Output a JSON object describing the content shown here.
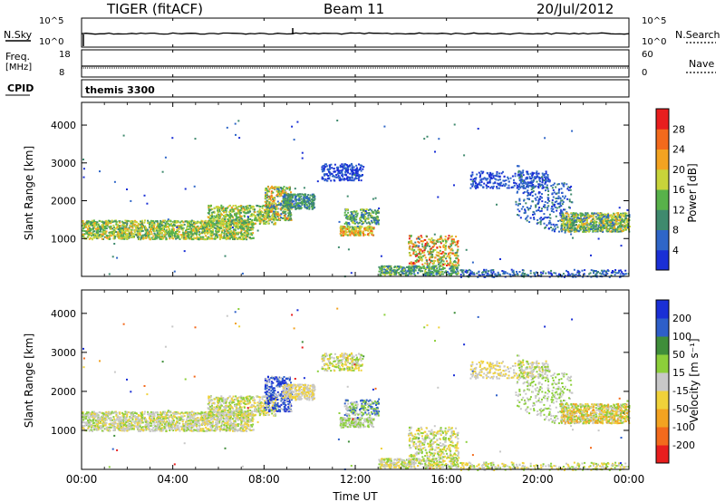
{
  "header": {
    "site": "TIGER (fitACF)",
    "beam": "Beam 11",
    "date": "20/Jul/2012"
  },
  "summary_panels": {
    "nsky": {
      "left_label": "N.Sky",
      "right_label": "N.Search",
      "left_ticks": [
        "10^5",
        "10^0"
      ],
      "right_ticks": [
        "10^5",
        "10^0"
      ]
    },
    "freq": {
      "left_label": "Freq.",
      "left_unit": "[MHz]",
      "right_label": "Nave",
      "left_ticks": [
        "18",
        "8"
      ],
      "right_ticks": [
        "60",
        "0"
      ]
    },
    "cpid": {
      "label": "CPID",
      "value": "themis 3300"
    }
  },
  "chart_data": [
    {
      "type": "heatmap",
      "name": "power",
      "ylabel": "Slant Range [km]",
      "y_ticks": [
        "1000",
        "2000",
        "3000",
        "4000"
      ],
      "ylim": [
        0,
        4600
      ],
      "xlim_hours": [
        0,
        24
      ],
      "colorbar": {
        "label": "Power [dB]",
        "ticks": [
          "4",
          "8",
          "12",
          "16",
          "20",
          "24",
          "28"
        ],
        "range": [
          0,
          30
        ],
        "colors": [
          "#1a2fd6",
          "#2f66c8",
          "#3f8a6e",
          "#58b24a",
          "#c8d43a",
          "#f3a321",
          "#f36a1c",
          "#e81e1e"
        ]
      }
    },
    {
      "type": "heatmap",
      "name": "velocity",
      "ylabel": "Slant Range [km]",
      "y_ticks": [
        "1000",
        "2000",
        "3000",
        "4000"
      ],
      "ylim": [
        0,
        4600
      ],
      "xlim_hours": [
        0,
        24
      ],
      "colorbar": {
        "label": "Velocity [m s⁻¹]",
        "ticks": [
          "200",
          "100",
          "50",
          "15",
          "-15",
          "-50",
          "-100",
          "-200"
        ],
        "colors": [
          "#1a2fd6",
          "#2e5fc9",
          "#3f8e3a",
          "#8ccf3a",
          "#c8c8c8",
          "#f0d23a",
          "#f3a321",
          "#f36a1c",
          "#e81e1e"
        ]
      }
    }
  ],
  "x_axis": {
    "ticks": [
      "00:00",
      "04:00",
      "08:00",
      "12:00",
      "16:00",
      "20:00",
      "00:00"
    ],
    "label": "Time UT"
  }
}
